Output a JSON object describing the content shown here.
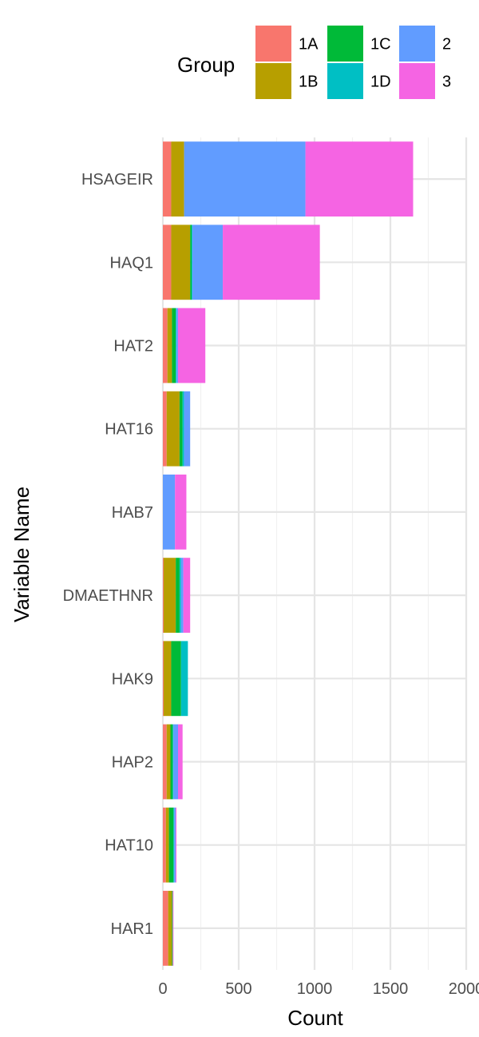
{
  "chart_data": {
    "type": "bar",
    "orientation": "horizontal",
    "stacked": true,
    "title": "",
    "xlabel": "Count",
    "ylabel": "Variable Name",
    "xlim": [
      0,
      2000
    ],
    "xticks": [
      0,
      500,
      1000,
      1500,
      2000
    ],
    "grid": true,
    "legend": {
      "title": "Group",
      "position": "top"
    },
    "categories": [
      "HSAGEIR",
      "HAQ1",
      "HAT2",
      "HAT16",
      "HAB7",
      "DMAETHNR",
      "HAK9",
      "HAP2",
      "HAT10",
      "HAR1"
    ],
    "series": [
      {
        "name": "1A",
        "color": "#F8766D",
        "values": [
          55,
          55,
          30,
          25,
          0,
          5,
          5,
          25,
          20,
          35
        ]
      },
      {
        "name": "1B",
        "color": "#B79F00",
        "values": [
          85,
          125,
          30,
          85,
          0,
          80,
          50,
          25,
          20,
          25
        ]
      },
      {
        "name": "1C",
        "color": "#00BA38",
        "values": [
          0,
          10,
          25,
          20,
          0,
          25,
          65,
          15,
          30,
          5
        ]
      },
      {
        "name": "1D",
        "color": "#00BFC4",
        "values": [
          0,
          5,
          5,
          10,
          0,
          10,
          45,
          5,
          5,
          0
        ]
      },
      {
        "name": "2",
        "color": "#619CFF",
        "values": [
          800,
          200,
          10,
          40,
          80,
          15,
          0,
          30,
          10,
          0
        ]
      },
      {
        "name": "3",
        "color": "#F564E3",
        "values": [
          710,
          640,
          180,
          0,
          75,
          45,
          0,
          30,
          5,
          5
        ]
      }
    ]
  }
}
